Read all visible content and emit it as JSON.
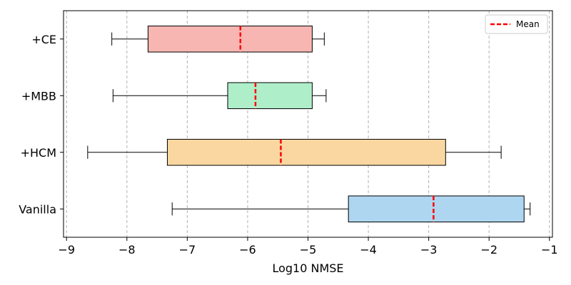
{
  "chart_data": {
    "type": "boxplot",
    "orientation": "horizontal",
    "title": "",
    "xlabel": "Log10 NMSE",
    "ylabel": "",
    "xlim": [
      -9.05,
      -0.95
    ],
    "xticks": [
      -9,
      -8,
      -7,
      -6,
      -5,
      -4,
      -3,
      -2,
      -1
    ],
    "xtick_labels": [
      "−9",
      "−8",
      "−7",
      "−6",
      "−5",
      "−4",
      "−3",
      "−2",
      "−1"
    ],
    "grid": {
      "x": true,
      "y": false,
      "style": "dashed"
    },
    "legend": {
      "position": "top-right",
      "entries": [
        {
          "label": "Mean",
          "color": "#ff0000",
          "style": "dashed"
        }
      ]
    },
    "categories": [
      "+CE",
      "+MBB",
      "+HCM",
      "Vanilla"
    ],
    "boxes": [
      {
        "label": "+CE",
        "whisker_low": -8.25,
        "q1": -7.65,
        "mean": -6.12,
        "q3": -4.93,
        "whisker_high": -4.73,
        "color": "#f7b6b2"
      },
      {
        "label": "+MBB",
        "whisker_low": -8.23,
        "q1": -6.33,
        "mean": -5.87,
        "q3": -4.93,
        "whisker_high": -4.7,
        "color": "#aeeec9"
      },
      {
        "label": "+HCM",
        "whisker_low": -8.65,
        "q1": -7.33,
        "mean": -5.45,
        "q3": -2.72,
        "whisker_high": -1.8,
        "color": "#fad7a0"
      },
      {
        "label": "Vanilla",
        "whisker_low": -7.25,
        "q1": -4.33,
        "mean": -2.92,
        "q3": -1.42,
        "whisker_high": -1.32,
        "color": "#aed6f1"
      }
    ],
    "mean_color": "#ff0000"
  }
}
